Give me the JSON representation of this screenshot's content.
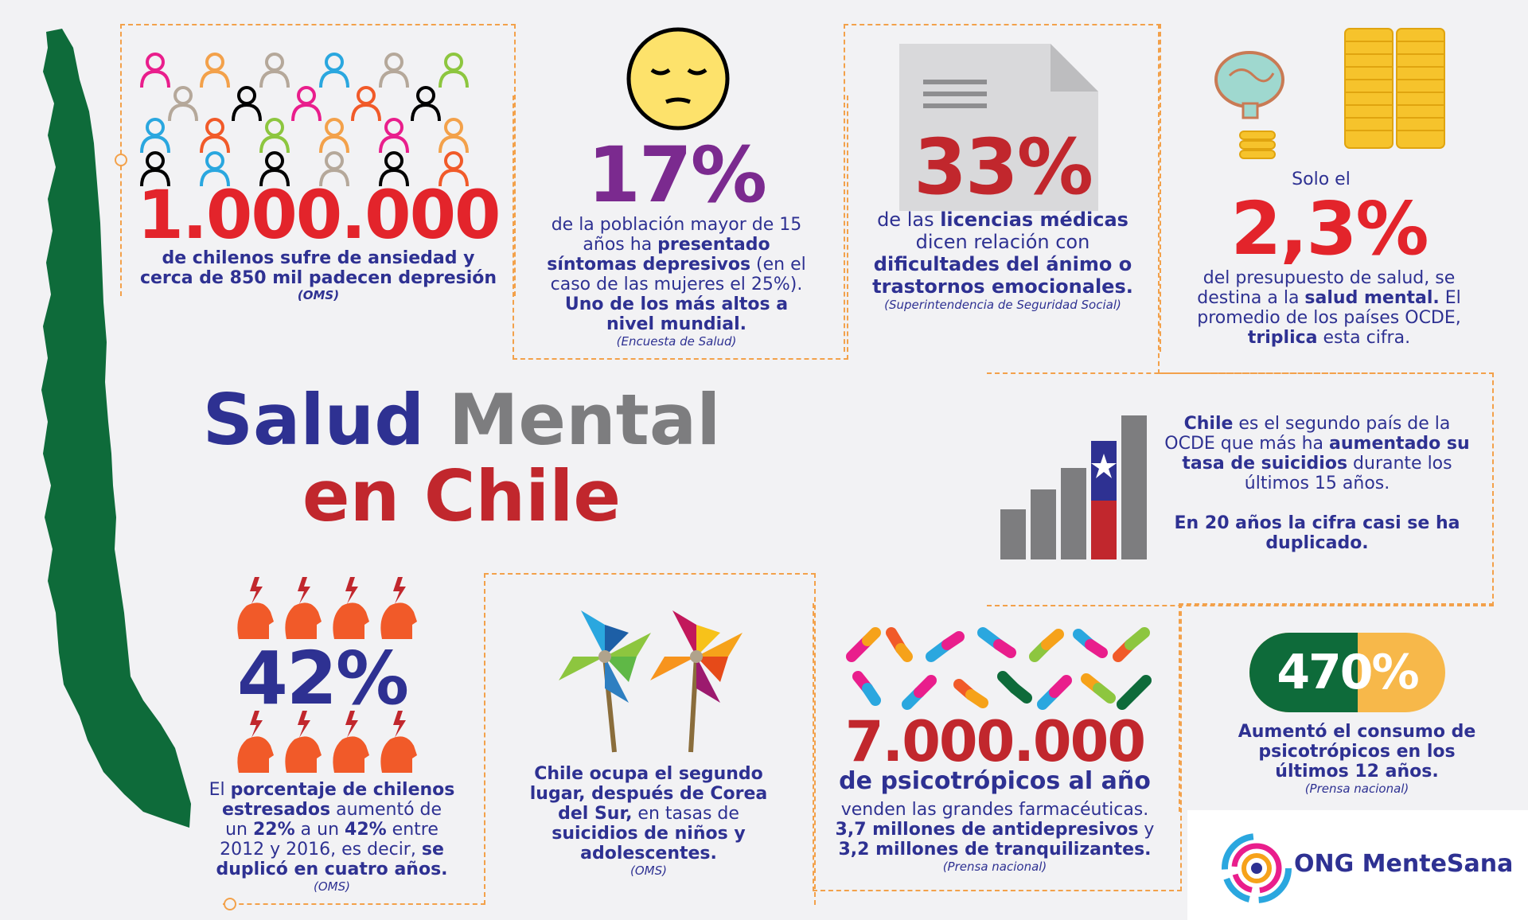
{
  "title": {
    "word1": "Salud",
    "word2": "Mental",
    "line2": "en Chile"
  },
  "stat_million": {
    "value": "1.000.000",
    "line1": "de chilenos sufre de ansiedad y",
    "line2": "cerca de 850 mil padecen depresión",
    "source": "(OMS)"
  },
  "stat_17": {
    "value": "17%",
    "t1": "de la población mayor de 15 años ha ",
    "t2": "presentado síntomas depresivos",
    "t3": " (en el caso de las mujeres el 25%). ",
    "t4": "Uno de los más altos a nivel mundial.",
    "source": "(Encuesta de Salud)"
  },
  "stat_33": {
    "value": "33%",
    "t1": "de las ",
    "t2": "licencias médicas",
    "t3": " dicen relación con ",
    "t4": "dificultades del ánimo o trastornos emocionales.",
    "source": "(Superintendencia de Seguridad Social)"
  },
  "stat_23": {
    "pre": "Solo el",
    "value": "2,3%",
    "t1": "del presupuesto de salud, se destina a la ",
    "t2": "salud mental.",
    "t3": " El promedio de los países OCDE, ",
    "t4": "triplica",
    "t5": " esta cifra."
  },
  "suicide": {
    "t1": "Chile",
    "t2": " es el segundo país de la OCDE que más ha ",
    "t3": "aumentado su tasa de suicidios",
    "t4": " durante los últimos 15 años.",
    "t5": "En 20 años la cifra casi se ha duplicado."
  },
  "stat_42": {
    "value": "42%",
    "t1": "El ",
    "t2": "porcentaje de chilenos estresados",
    "t3": " aumentó de un ",
    "t4": "22%",
    "t5": " a un ",
    "t6": "42%",
    "t7": " entre 2012 y 2016, es decir, ",
    "t8": "se duplicó en cuatro años.",
    "source": "(OMS)"
  },
  "children": {
    "t1": "Chile ocupa el segundo lugar, después de Corea del Sur,",
    "t2": " en tasas de ",
    "t3": "suicidios de niños y adolescentes.",
    "source": "(OMS)"
  },
  "stat_7m": {
    "value": "7.000.000",
    "sub": "de psicotrópicos al año",
    "t1": "venden las grandes farmacéuticas.",
    "t2": "3,7 millones de antidepresivos",
    "t3": " y ",
    "t4": "3,2 millones de tranquilizantes.",
    "source": "(Prensa nacional)"
  },
  "stat_470": {
    "value": "470%",
    "t1": "Aumentó el consumo de psicotrópicos en los últimos 12 años.",
    "source": "(Prensa nacional)"
  },
  "logo": {
    "text": "ONG MenteSana"
  },
  "colors": {
    "navy": "#2e3192",
    "red": "#e3242b",
    "purple": "#7b2a8f",
    "green": "#0e6b3a",
    "orange": "#f3a14a",
    "gray": "#7d7d7f"
  }
}
